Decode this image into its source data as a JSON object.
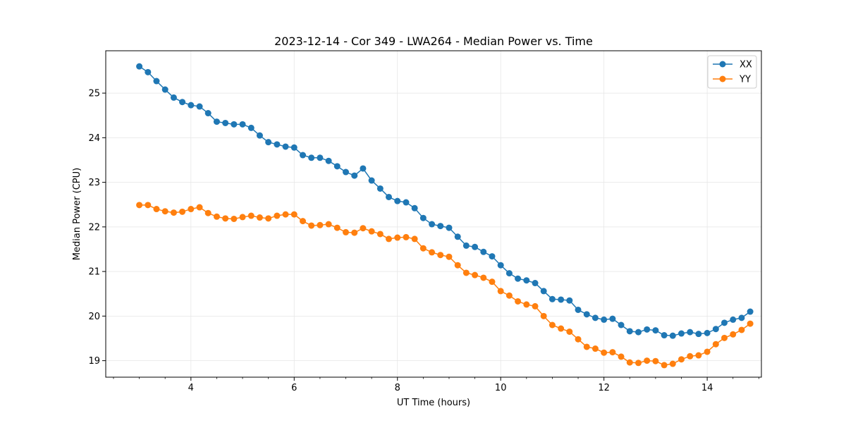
{
  "chart_data": {
    "type": "line",
    "title": "2023-12-14 - Cor 349 - LWA264 - Median Power vs. Time",
    "xlabel": "UT Time (hours)",
    "ylabel": "Median Power (CPU)",
    "xlim": [
      2.35,
      15.05
    ],
    "ylim": [
      18.63,
      25.95
    ],
    "xticks": [
      4,
      6,
      8,
      10,
      12,
      14
    ],
    "xtick_labels": [
      "4",
      "6",
      "8",
      "10",
      "12",
      "14"
    ],
    "xminor_step": 0.5,
    "yticks": [
      19,
      20,
      21,
      22,
      23,
      24,
      25
    ],
    "ytick_labels": [
      "19",
      "20",
      "21",
      "22",
      "23",
      "24",
      "25"
    ],
    "grid": true,
    "legend_position": "top-right",
    "x": [
      3.0,
      3.167,
      3.333,
      3.5,
      3.667,
      3.833,
      4.0,
      4.167,
      4.333,
      4.5,
      4.667,
      4.833,
      5.0,
      5.167,
      5.333,
      5.5,
      5.667,
      5.833,
      6.0,
      6.167,
      6.333,
      6.5,
      6.667,
      6.833,
      7.0,
      7.167,
      7.333,
      7.5,
      7.667,
      7.833,
      8.0,
      8.167,
      8.333,
      8.5,
      8.667,
      8.833,
      9.0,
      9.167,
      9.333,
      9.5,
      9.667,
      9.833,
      10.0,
      10.167,
      10.333,
      10.5,
      10.667,
      10.833,
      11.0,
      11.167,
      11.333,
      11.5,
      11.667,
      11.833,
      12.0,
      12.167,
      12.333,
      12.5,
      12.667,
      12.833,
      13.0,
      13.167,
      13.333,
      13.5,
      13.667,
      13.833,
      14.0,
      14.167,
      14.333,
      14.5,
      14.667,
      14.833
    ],
    "series": [
      {
        "name": "XX",
        "color": "#1f77b4",
        "values": [
          25.6,
          25.47,
          25.27,
          25.08,
          24.9,
          24.8,
          24.73,
          24.7,
          24.55,
          24.36,
          24.33,
          24.3,
          24.3,
          24.22,
          24.05,
          23.9,
          23.85,
          23.8,
          23.78,
          23.61,
          23.55,
          23.55,
          23.48,
          23.36,
          23.23,
          23.15,
          23.31,
          23.04,
          22.86,
          22.67,
          22.58,
          22.55,
          22.42,
          22.2,
          22.06,
          22.02,
          21.98,
          21.78,
          21.58,
          21.55,
          21.44,
          21.34,
          21.14,
          20.96,
          20.84,
          20.8,
          20.74,
          20.56,
          20.38,
          20.37,
          20.35,
          20.14,
          20.04,
          19.96,
          19.92,
          19.94,
          19.8,
          19.66,
          19.64,
          19.7,
          19.68,
          19.57,
          19.56,
          19.61,
          19.64,
          19.6,
          19.62,
          19.71,
          19.85,
          19.92,
          19.96,
          20.1
        ]
      },
      {
        "name": "YY",
        "color": "#ff7f0e",
        "values": [
          22.49,
          22.49,
          22.4,
          22.35,
          22.32,
          22.34,
          22.4,
          22.44,
          22.31,
          22.23,
          22.19,
          22.18,
          22.22,
          22.25,
          22.21,
          22.19,
          22.25,
          22.28,
          22.28,
          22.13,
          22.03,
          22.04,
          22.06,
          21.98,
          21.88,
          21.87,
          21.97,
          21.9,
          21.84,
          21.73,
          21.76,
          21.77,
          21.73,
          21.52,
          21.43,
          21.37,
          21.33,
          21.14,
          20.97,
          20.92,
          20.86,
          20.77,
          20.56,
          20.46,
          20.33,
          20.26,
          20.22,
          20.0,
          19.8,
          19.72,
          19.65,
          19.48,
          19.31,
          19.27,
          19.18,
          19.19,
          19.09,
          18.96,
          18.95,
          19.0,
          18.99,
          18.9,
          18.93,
          19.03,
          19.1,
          19.12,
          19.2,
          19.37,
          19.51,
          19.59,
          19.69,
          19.83
        ]
      }
    ]
  }
}
